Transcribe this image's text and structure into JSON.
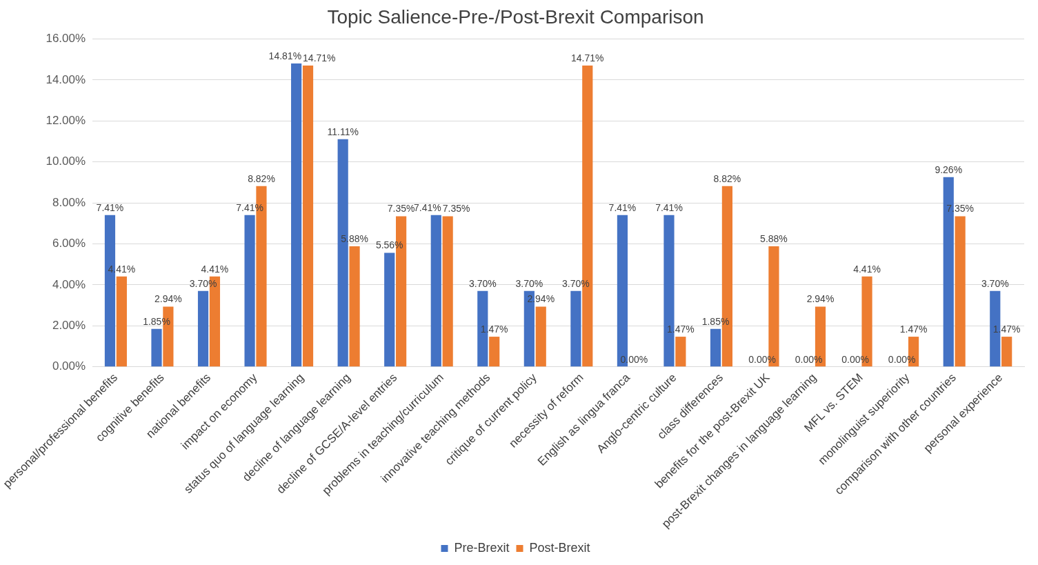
{
  "chart_data": {
    "type": "bar",
    "title": "Topic Salience-Pre-/Post-Brexit Comparison",
    "categories": [
      "personal/professional benefits",
      "cognitive benefits",
      "national benefits",
      "impact on economy",
      "status quo of language learning",
      "decline of language learning",
      "decline of GCSE/A-level entries",
      "problems in teaching/curriculum",
      "innovative teaching methods",
      "critique of current policy",
      "necessity of reform",
      "English as lingua franca",
      "Anglo-centric culture",
      "class differences",
      "benefits for the post-Brexit UK",
      "post-Brexit changes in language learning",
      "MFL vs. STEM",
      "monolinguist superiority",
      "comparison with other countries",
      "personal experience"
    ],
    "series": [
      {
        "name": "Pre-Brexit",
        "color": "#4472c4",
        "values": [
          7.41,
          1.85,
          3.7,
          7.41,
          14.81,
          11.11,
          5.56,
          7.41,
          3.7,
          3.7,
          3.7,
          7.41,
          7.41,
          1.85,
          0.0,
          0.0,
          0.0,
          0.0,
          9.26,
          3.7
        ],
        "value_labels": [
          "7.41%",
          "1.85%",
          "3.70%",
          "7.41%",
          "14.81%",
          "11.11%",
          "5.56%",
          "7.41%",
          "3.70%",
          "3.70%",
          "3.70%",
          "7.41%",
          "7.41%",
          "1.85%",
          "0.00%",
          "0.00%",
          "0.00%",
          "0.00%",
          "9.26%",
          "3.70%"
        ]
      },
      {
        "name": "Post-Brexit",
        "color": "#ed7d31",
        "values": [
          4.41,
          2.94,
          4.41,
          8.82,
          14.71,
          5.88,
          7.35,
          7.35,
          1.47,
          2.94,
          14.71,
          0.0,
          1.47,
          8.82,
          5.88,
          2.94,
          4.41,
          1.47,
          7.35,
          1.47
        ],
        "value_labels": [
          "4.41%",
          "2.94%",
          "4.41%",
          "8.82%",
          "14.71%",
          "5.88%",
          "7.35%",
          "7.35%",
          "1.47%",
          "2.94%",
          "14.71%",
          "0.00%",
          "1.47%",
          "8.82%",
          "5.88%",
          "2.94%",
          "4.41%",
          "1.47%",
          "7.35%",
          "1.47%"
        ]
      }
    ],
    "ylim": [
      0,
      16
    ],
    "yticks": [
      {
        "value": 0,
        "label": "0.00%"
      },
      {
        "value": 2,
        "label": "2.00%"
      },
      {
        "value": 4,
        "label": "4.00%"
      },
      {
        "value": 6,
        "label": "6.00%"
      },
      {
        "value": 8,
        "label": "8.00%"
      },
      {
        "value": 10,
        "label": "10.00%"
      },
      {
        "value": 12,
        "label": "12.00%"
      },
      {
        "value": 14,
        "label": "14.00%"
      },
      {
        "value": 16,
        "label": "16.00%"
      }
    ],
    "grid": "y",
    "legend": "bottom"
  }
}
